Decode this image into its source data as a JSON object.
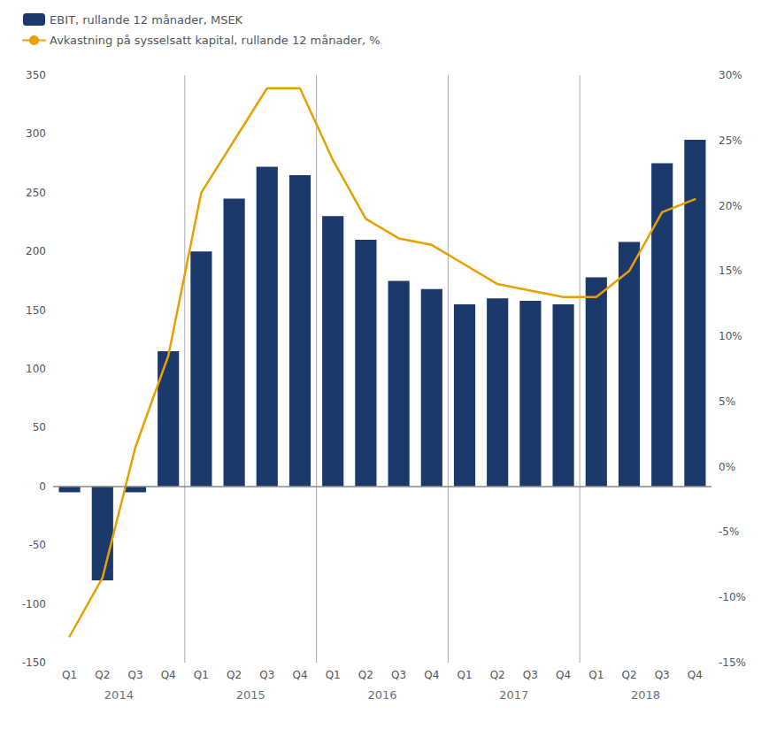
{
  "chart_data": {
    "type": "bar",
    "categories": [
      "Q1",
      "Q2",
      "Q3",
      "Q4",
      "Q1",
      "Q2",
      "Q3",
      "Q4",
      "Q1",
      "Q2",
      "Q3",
      "Q4",
      "Q1",
      "Q2",
      "Q3",
      "Q4",
      "Q1",
      "Q2",
      "Q3",
      "Q4"
    ],
    "series": [
      {
        "name": "EBIT, rullande 12 månader, MSEK",
        "type": "bar",
        "color": "#1b3a6b",
        "values": [
          -5,
          -80,
          -5,
          115,
          200,
          245,
          272,
          265,
          230,
          210,
          175,
          168,
          155,
          160,
          158,
          155,
          178,
          208,
          275,
          295
        ]
      },
      {
        "name": "Avkastning på sysselsatt kapital, rullande 12 månader, %",
        "type": "line",
        "color": "#E8A000",
        "axis": "y2",
        "values": [
          -13,
          -8.5,
          1.5,
          8.5,
          21,
          25,
          29,
          29,
          23.5,
          19,
          17.5,
          17,
          15.5,
          14,
          13.5,
          13,
          13,
          15,
          19.5,
          20.5
        ]
      }
    ],
    "ylim": [
      -150,
      350
    ],
    "yticks": [
      -150,
      -100,
      -50,
      0,
      50,
      100,
      150,
      200,
      250,
      300,
      350
    ],
    "y2lim": [
      -15,
      30
    ],
    "y2ticks": [
      {
        "value": -15,
        "label": "-15%"
      },
      {
        "value": -10,
        "label": "-10%"
      },
      {
        "value": -5,
        "label": "-5%"
      },
      {
        "value": 0,
        "label": "0%"
      },
      {
        "value": 5,
        "label": "5%"
      },
      {
        "value": 10,
        "label": "10%"
      },
      {
        "value": 15,
        "label": "15%"
      },
      {
        "value": 20,
        "label": "20%"
      },
      {
        "value": 25,
        "label": "25%"
      },
      {
        "value": 30,
        "label": "30%"
      }
    ],
    "annotations": [
      {
        "text": "2014",
        "x": 1.5
      },
      {
        "text": "2015",
        "x": 5.5
      },
      {
        "text": "2016",
        "x": 9.5
      },
      {
        "text": "2017",
        "x": 13.5
      },
      {
        "text": "2018",
        "x": 17.5
      }
    ],
    "grid": false,
    "legend": "upper left"
  }
}
